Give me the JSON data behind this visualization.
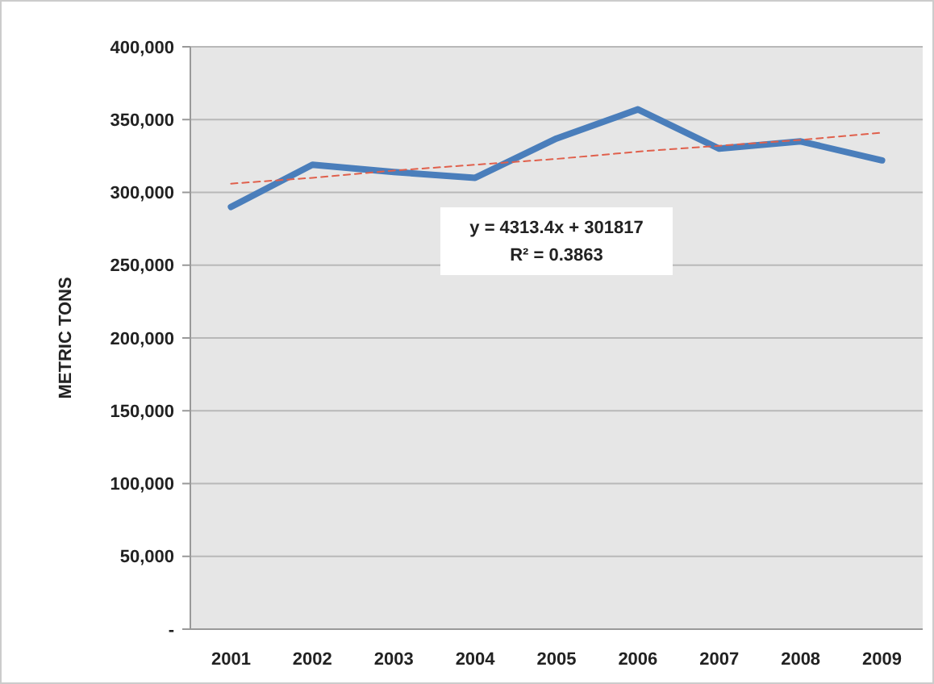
{
  "chart_data": {
    "type": "line",
    "ylabel": "METRIC TONS",
    "categories": [
      "2001",
      "2002",
      "2003",
      "2004",
      "2005",
      "2006",
      "2007",
      "2008",
      "2009"
    ],
    "series": [
      {
        "color": "#4a7ebb",
        "values": [
          290000,
          319000,
          314000,
          310000,
          337000,
          357000,
          330000,
          335000,
          322000
        ]
      },
      {
        "type": "line",
        "color": "#e0604c",
        "line_style": "dashed",
        "values": [
          306000,
          310000,
          315000,
          319000,
          323000,
          328000,
          332000,
          336000,
          341000
        ]
      }
    ],
    "ylim": [
      0,
      400000
    ],
    "yticks": [
      {
        "value": 0,
        "label": "-"
      },
      {
        "value": 50000,
        "label": "50,000"
      },
      {
        "value": 100000,
        "label": "100,000"
      },
      {
        "value": 150000,
        "label": "150,000"
      },
      {
        "value": 200000,
        "label": "200,000"
      },
      {
        "value": 250000,
        "label": "250,000"
      },
      {
        "value": 300000,
        "label": "300,000"
      },
      {
        "value": 350000,
        "label": "350,000"
      },
      {
        "value": 400000,
        "label": "400,000"
      }
    ],
    "grid": "y",
    "marker": "none",
    "line_style": "solid",
    "annotations": [
      "y = 4313.4x + 301817",
      "R² = 0.3863"
    ]
  }
}
